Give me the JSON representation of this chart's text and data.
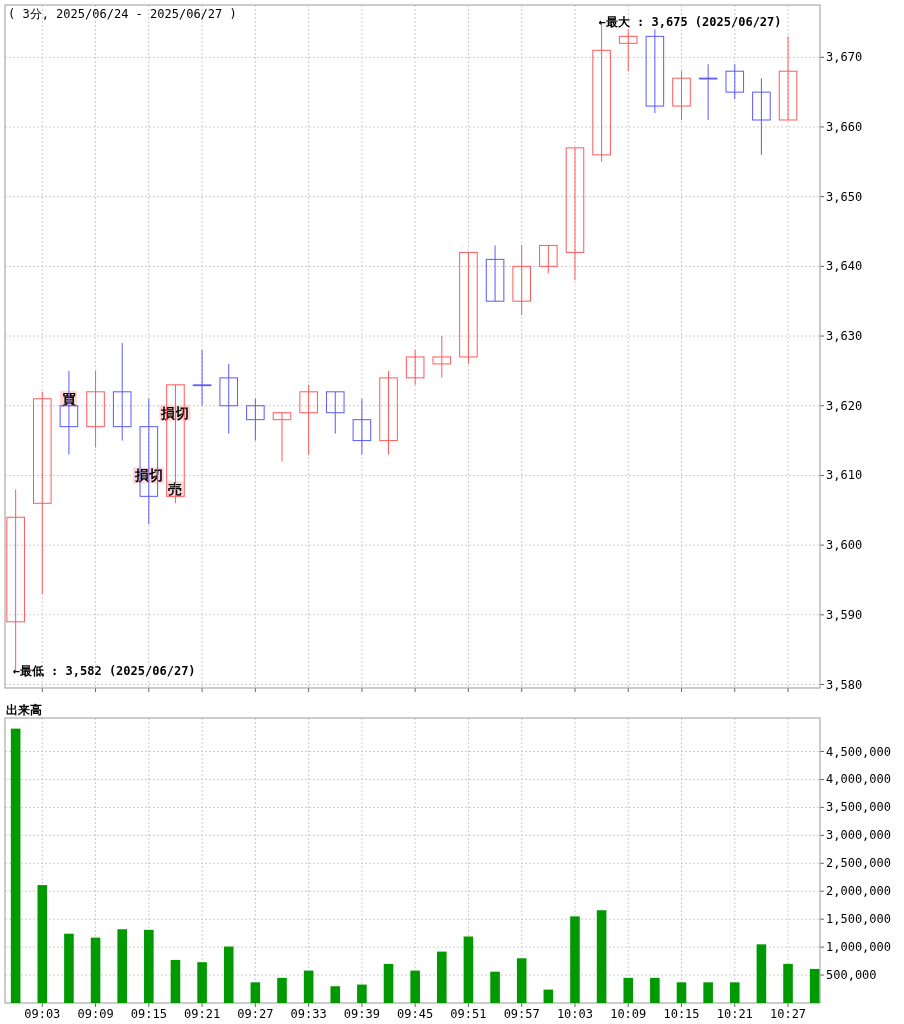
{
  "chart_data": [
    {
      "type": "candlestick",
      "title": "( 3分, 2025/06/24 - 2025/06/27 )",
      "x": [
        9,
        9.05,
        9.1,
        9.15,
        9.2,
        9.25,
        9.3,
        9.35,
        9.4,
        9.45,
        9.5,
        9.55,
        9.6,
        9.65,
        9.7,
        9.75,
        9.8,
        9.85,
        9.9,
        9.95,
        10,
        10.05,
        10.1,
        10.15,
        10.2,
        10.25,
        10.3,
        10.35,
        10.4,
        10.45
      ],
      "ohlc": [
        [
          3589,
          3608,
          3582,
          3604
        ],
        [
          3606,
          3622,
          3593,
          3621
        ],
        [
          3620,
          3625,
          3613,
          3617
        ],
        [
          3617,
          3625,
          3614,
          3622
        ],
        [
          3622,
          3629,
          3615,
          3617
        ],
        [
          3617,
          3621,
          3603,
          3607
        ],
        [
          3607,
          3623,
          3606,
          3623
        ],
        [
          3623,
          3628,
          3620,
          3623
        ],
        [
          3624,
          3626,
          3616,
          3620
        ],
        [
          3620,
          3621,
          3615,
          3618
        ],
        [
          3618,
          3619,
          3612,
          3619
        ],
        [
          3619,
          3623,
          3613,
          3622
        ],
        [
          3622,
          3622,
          3616,
          3619
        ],
        [
          3618,
          3621,
          3613,
          3615
        ],
        [
          3615,
          3625,
          3613,
          3624
        ],
        [
          3624,
          3628,
          3623,
          3627
        ],
        [
          3626,
          3630,
          3624,
          3627
        ],
        [
          3627,
          3642,
          3626,
          3642
        ],
        [
          3641,
          3643,
          3635,
          3635
        ],
        [
          3635,
          3643,
          3633,
          3640
        ],
        [
          3640,
          3643,
          3639,
          3643
        ],
        [
          3642,
          3657,
          3638,
          3657
        ],
        [
          3656,
          3675,
          3655,
          3671
        ],
        [
          3672,
          3674,
          3668,
          3673
        ],
        [
          3673,
          3674,
          3662,
          3663
        ],
        [
          3663,
          3668,
          3661,
          3667
        ],
        [
          3667,
          3669,
          3661,
          3667
        ],
        [
          3668,
          3669,
          3664,
          3665
        ],
        [
          3665,
          3667,
          3656,
          3661
        ],
        [
          3661,
          3673,
          3661,
          3668
        ]
      ],
      "colors": [
        "#ff5a5a",
        "#ff5a5a",
        "#5a5aff",
        "#ff5a5a",
        "#5a5aff",
        "#5a5aff",
        "#ff5a5a",
        "#5a5aff",
        "#5a5aff",
        "#5a5aff",
        "#ff5a5a",
        "#ff5a5a",
        "#5a5aff",
        "#5a5aff",
        "#ff5a5a",
        "#ff5a5a",
        "#ff5a5a",
        "#ff5a5a",
        "#5a5aff",
        "#ff5a5a",
        "#ff5a5a",
        "#ff5a5a",
        "#ff5a5a",
        "#ff5a5a",
        "#5a5aff",
        "#ff5a5a",
        "#5a5aff",
        "#5a5aff",
        "#5a5aff",
        "#ff5a5a"
      ],
      "xlim": [
        8.98,
        10.51
      ],
      "ylim": [
        3579.5,
        3677.5
      ],
      "yticks": [
        {
          "value": 3580,
          "label": "3,580"
        },
        {
          "value": 3590,
          "label": "3,590"
        },
        {
          "value": 3600,
          "label": "3,600"
        },
        {
          "value": 3610,
          "label": "3,610"
        },
        {
          "value": 3620,
          "label": "3,620"
        },
        {
          "value": 3630,
          "label": "3,630"
        },
        {
          "value": 3640,
          "label": "3,640"
        },
        {
          "value": 3650,
          "label": "3,650"
        },
        {
          "value": 3660,
          "label": "3,660"
        },
        {
          "value": 3670,
          "label": "3,670"
        }
      ],
      "tick_labels": "y",
      "grid": true,
      "annotations": [
        {
          "text": "←最大 : 3,675 (2025/06/27)",
          "x": 10.1,
          "y": 3675
        },
        {
          "text": "←最低 : 3,582 (2025/06/27)",
          "x": 9,
          "y": 3582
        },
        {
          "text": "買",
          "x": 9.1,
          "y": 3621
        },
        {
          "text": "損切",
          "x": 9.25,
          "y": 3610
        },
        {
          "text": "損切",
          "x": 9.3,
          "y": 3619
        },
        {
          "text": "売",
          "x": 9.3,
          "y": 3608
        }
      ]
    },
    {
      "type": "bar",
      "ylabel": "出来高",
      "color": "#009900",
      "x": [
        9,
        9.05,
        9.1,
        9.15,
        9.2,
        9.25,
        9.3,
        9.35,
        9.4,
        9.45,
        9.5,
        9.55,
        9.6,
        9.65,
        9.7,
        9.75,
        9.8,
        9.85,
        9.9,
        9.95,
        10,
        10.05,
        10.1,
        10.15,
        10.2,
        10.25,
        10.3,
        10.35,
        10.4,
        10.45,
        10.5
      ],
      "values": [
        4910000,
        2110000,
        1240000,
        1170000,
        1320000,
        1310000,
        770000,
        730000,
        1010000,
        370000,
        450000,
        580000,
        300000,
        330000,
        700000,
        580000,
        920000,
        1190000,
        560000,
        800000,
        240000,
        1550000,
        1660000,
        450000,
        450000,
        370000,
        370000,
        370000,
        1050000,
        700000,
        610000
      ],
      "xlim": [
        8.98,
        10.51
      ],
      "xticks": [
        {
          "value": 9.05,
          "label": "09:03"
        },
        {
          "value": 9.15,
          "label": "09:09"
        },
        {
          "value": 9.25,
          "label": "09:15"
        },
        {
          "value": 9.35,
          "label": "09:21"
        },
        {
          "value": 9.45,
          "label": "09:27"
        },
        {
          "value": 9.55,
          "label": "09:33"
        },
        {
          "value": 9.65,
          "label": "09:39"
        },
        {
          "value": 9.75,
          "label": "09:45"
        },
        {
          "value": 9.85,
          "label": "09:51"
        },
        {
          "value": 9.95,
          "label": "09:57"
        },
        {
          "value": 10.05,
          "label": "10:03"
        },
        {
          "value": 10.15,
          "label": "10:09"
        },
        {
          "value": 10.25,
          "label": "10:15"
        },
        {
          "value": 10.35,
          "label": "10:21"
        },
        {
          "value": 10.45,
          "label": "10:27"
        }
      ],
      "ylim": [
        0,
        5100000
      ],
      "yticks": [
        {
          "value": 500000,
          "label": "500,000"
        },
        {
          "value": 1000000,
          "label": "1,000,000"
        },
        {
          "value": 1500000,
          "label": "1,500,000"
        },
        {
          "value": 2000000,
          "label": "2,000,000"
        },
        {
          "value": 2500000,
          "label": "2,500,000"
        },
        {
          "value": 3000000,
          "label": "3,000,000"
        },
        {
          "value": 3500000,
          "label": "3,500,000"
        },
        {
          "value": 4000000,
          "label": "4,000,000"
        },
        {
          "value": 4500000,
          "label": "4,500,000"
        }
      ],
      "grid": true
    }
  ]
}
